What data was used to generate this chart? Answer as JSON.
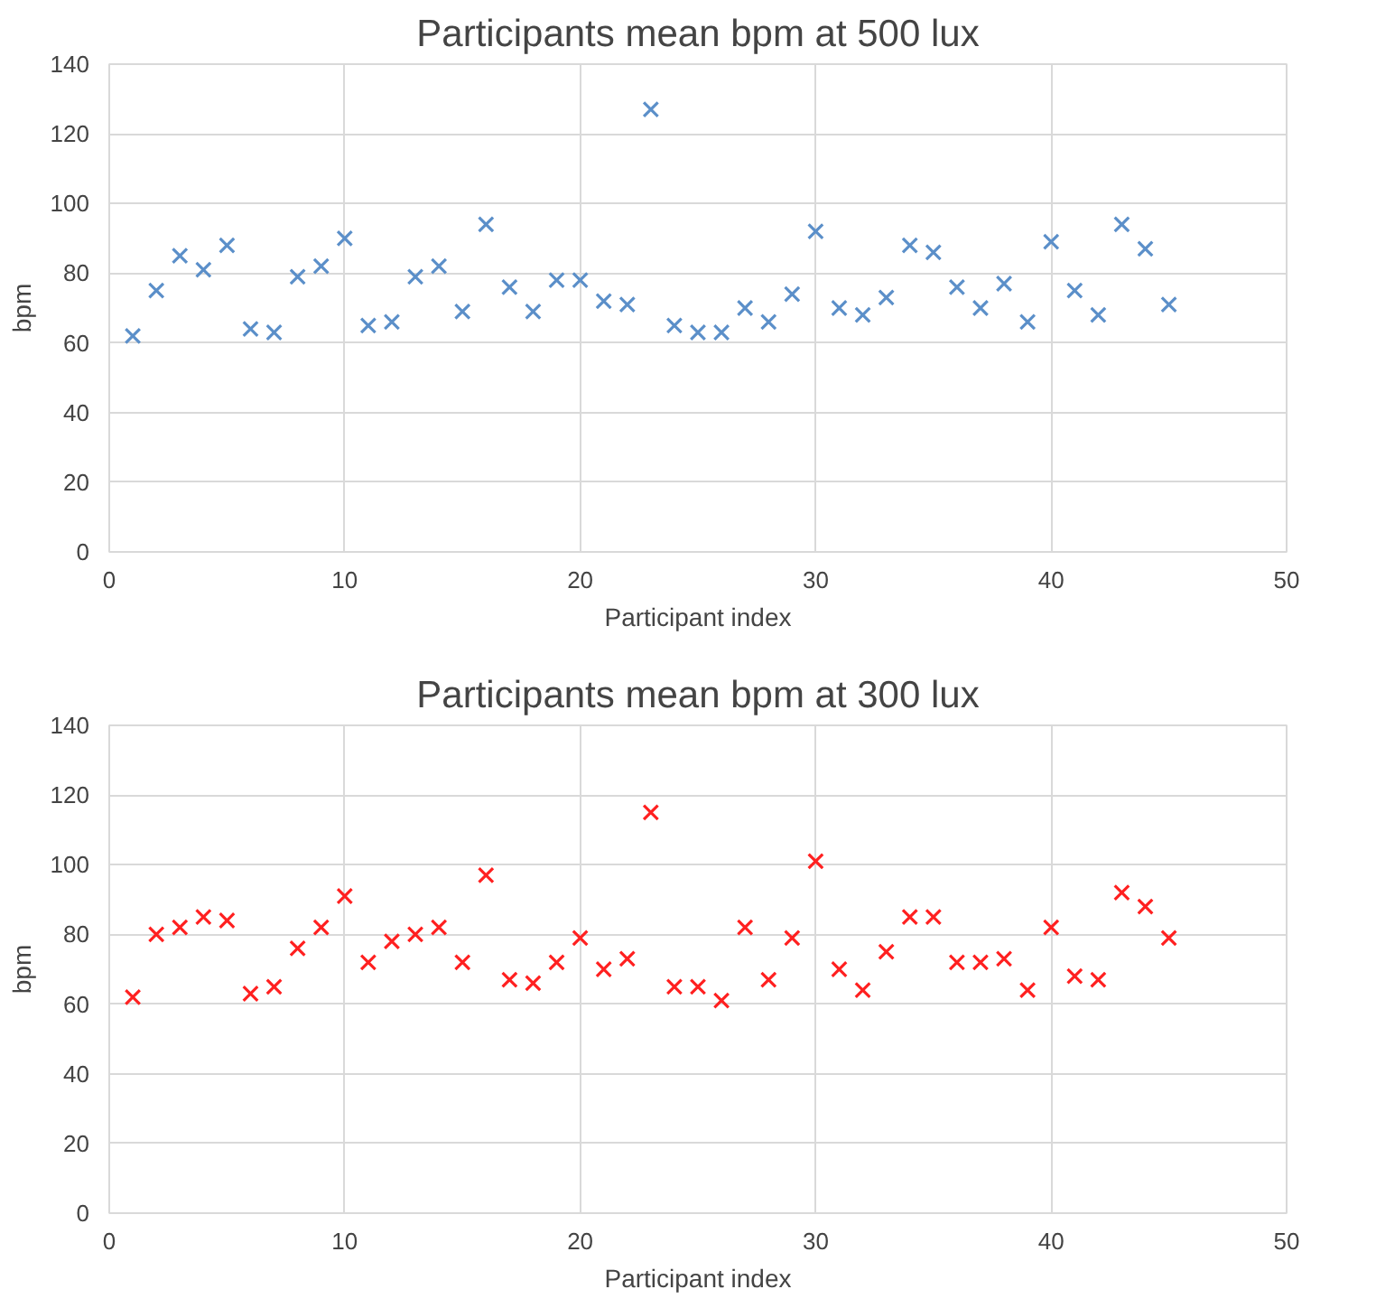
{
  "chart_data": [
    {
      "type": "scatter",
      "title": "Participants mean bpm at 500 lux",
      "xlabel": "Participant index",
      "ylabel": "bpm",
      "marker": "cross",
      "grid": true,
      "xlim": [
        0,
        50
      ],
      "xticks": [
        0,
        10,
        20,
        30,
        40,
        50
      ],
      "ylim": [
        0,
        140
      ],
      "yticks": [
        0,
        20,
        40,
        60,
        80,
        100,
        120,
        140
      ],
      "x": [
        1,
        2,
        3,
        4,
        5,
        6,
        7,
        8,
        9,
        10,
        11,
        12,
        13,
        14,
        15,
        16,
        17,
        18,
        19,
        20,
        21,
        22,
        23,
        24,
        25,
        26,
        27,
        28,
        29,
        30,
        31,
        32,
        33,
        34,
        35,
        36,
        37,
        38,
        39,
        40,
        41,
        42,
        43,
        44,
        45
      ],
      "series": [
        {
          "color": "#5b8fc9",
          "values": [
            62,
            75,
            85,
            81,
            88,
            64,
            63,
            79,
            82,
            90,
            65,
            66,
            79,
            82,
            69,
            94,
            76,
            69,
            78,
            78,
            72,
            71,
            127,
            65,
            63,
            63,
            70,
            66,
            74,
            92,
            70,
            68,
            73,
            88,
            86,
            76,
            70,
            77,
            66,
            89,
            75,
            68,
            94,
            87,
            71
          ]
        }
      ]
    },
    {
      "type": "scatter",
      "title": "Participants mean bpm at 300 lux",
      "xlabel": "Participant index",
      "ylabel": "bpm",
      "marker": "cross",
      "grid": true,
      "xlim": [
        0,
        50
      ],
      "xticks": [
        0,
        10,
        20,
        30,
        40,
        50
      ],
      "ylim": [
        0,
        140
      ],
      "yticks": [
        0,
        20,
        40,
        60,
        80,
        100,
        120,
        140
      ],
      "x": [
        1,
        2,
        3,
        4,
        5,
        6,
        7,
        8,
        9,
        10,
        11,
        12,
        13,
        14,
        15,
        16,
        17,
        18,
        19,
        20,
        21,
        22,
        23,
        24,
        25,
        26,
        27,
        28,
        29,
        30,
        31,
        32,
        33,
        34,
        35,
        36,
        37,
        38,
        39,
        40,
        41,
        42,
        43,
        44,
        45
      ],
      "series": [
        {
          "color": "#ff2020",
          "values": [
            62,
            80,
            82,
            85,
            84,
            63,
            65,
            76,
            82,
            91,
            72,
            78,
            80,
            82,
            72,
            97,
            67,
            66,
            72,
            79,
            70,
            73,
            115,
            65,
            65,
            61,
            82,
            67,
            79,
            101,
            70,
            64,
            75,
            85,
            85,
            72,
            72,
            73,
            64,
            82,
            68,
            67,
            92,
            88,
            79
          ]
        }
      ]
    }
  ]
}
